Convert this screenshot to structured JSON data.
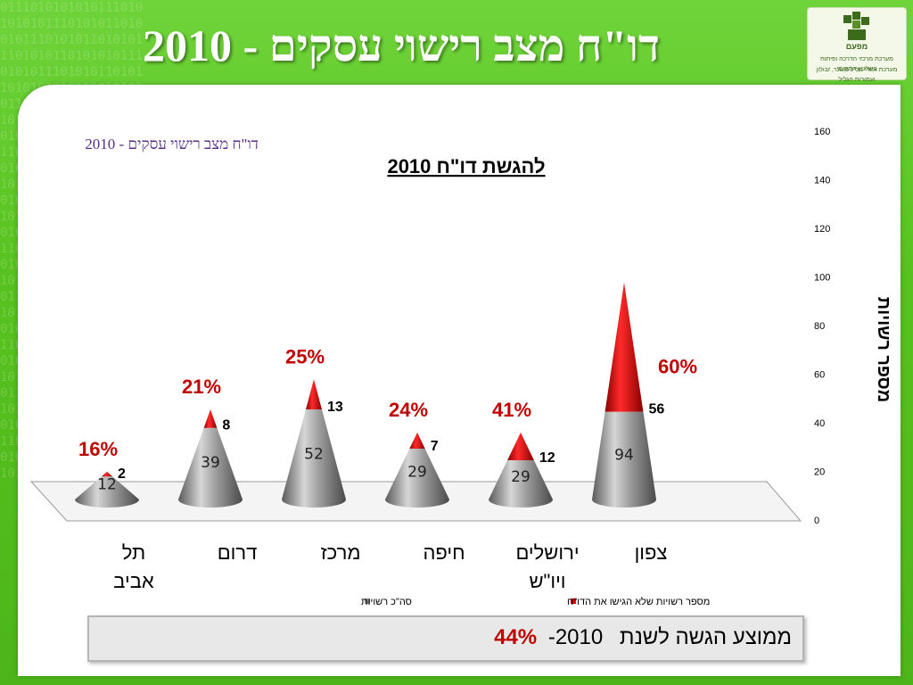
{
  "slide": {
    "title": "דו\"ח מצב רישוי עסקים - 2010",
    "subtitle": "דו\"ח מצב רישוי עסקים - 2010",
    "logo_text_top": "מפעם",
    "logo_text_bottom": "מערכת מרכזי הדרכה ופיתוח בשלטון המקומי",
    "logo_text_bottom2": "מערכת אזורי נוליל מעונר, זבולון ועמורות הגליל"
  },
  "summary": {
    "label": "ממוצע הגשה לשנת",
    "year": "2010-",
    "value": "44%"
  },
  "colors": {
    "gray_series": "#8a8a8a",
    "red_series": "#d90000",
    "percent_text": "#c00000"
  },
  "chart_data": {
    "type": "bar",
    "bar_shape": "3d-cone",
    "title": "להגשת דו\"ח 2010",
    "ylabel": "מספר רשויות",
    "ylim": [
      0,
      160
    ],
    "yticks": [
      0,
      20,
      40,
      60,
      80,
      100,
      120,
      140,
      160
    ],
    "categories": [
      "תל אביב",
      "דרום",
      "מרכז",
      "חיפה",
      "ירושלים ויו\"ש",
      "צפון"
    ],
    "series": [
      {
        "name": "סה\"כ רשויות",
        "values": [
          12,
          39,
          52,
          29,
          29,
          94
        ]
      },
      {
        "name": "מספר רשויות שלא הגישו את הדו\"ח",
        "values": [
          2,
          8,
          13,
          7,
          12,
          56
        ]
      }
    ],
    "percent_labels": [
      "16%",
      "21%",
      "25%",
      "24%",
      "41%",
      "60%"
    ],
    "legend_position": "bottom"
  }
}
